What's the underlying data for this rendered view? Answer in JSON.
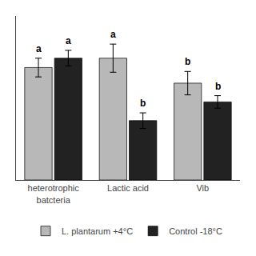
{
  "chart_data": {
    "type": "bar",
    "categories": [
      "heterotrophic\nbatcteria",
      "Lactic acid",
      "Vib"
    ],
    "series": [
      {
        "name": "L. plantarum +4°C",
        "color": "#b8b8b8",
        "values": [
          7.2,
          7.8,
          6.2
        ],
        "errors": [
          0.6,
          0.9,
          0.75
        ],
        "letters": [
          "a",
          "a",
          "b"
        ]
      },
      {
        "name": "Control -18°C",
        "color": "#222222",
        "values": [
          7.8,
          3.8,
          5.0
        ],
        "errors": [
          0.5,
          0.5,
          0.4
        ],
        "letters": [
          "a",
          "b",
          "b"
        ]
      }
    ],
    "ylim": [
      0,
      10.5
    ],
    "tick_labels": "x",
    "grid": false,
    "legend": "bottom"
  }
}
